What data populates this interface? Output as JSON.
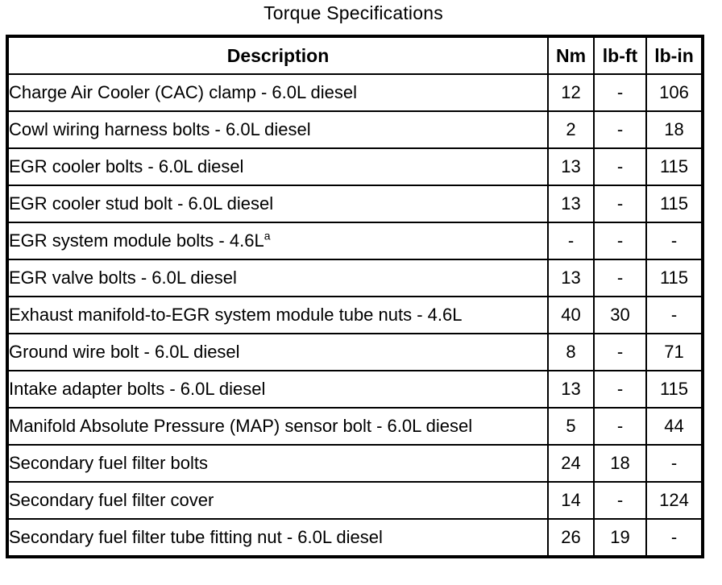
{
  "page": {
    "title": "Torque Specifications"
  },
  "colors": {
    "border": "#000000",
    "background": "#ffffff",
    "text": "#000000"
  },
  "table": {
    "columns": [
      "Description",
      "Nm",
      "lb-ft",
      "lb-in"
    ],
    "rows": [
      {
        "description": "Charge Air Cooler (CAC) clamp - 6.0L diesel",
        "nm": "12",
        "lb_ft": "-",
        "lb_in": "106"
      },
      {
        "description": "Cowl wiring harness bolts - 6.0L diesel",
        "nm": "2",
        "lb_ft": "-",
        "lb_in": "18"
      },
      {
        "description": "EGR cooler bolts - 6.0L diesel",
        "nm": "13",
        "lb_ft": "-",
        "lb_in": "115"
      },
      {
        "description": "EGR cooler stud bolt - 6.0L diesel",
        "nm": "13",
        "lb_ft": "-",
        "lb_in": "115"
      },
      {
        "description": "EGR system module bolts - 4.6L",
        "sup": "a",
        "nm": "-",
        "lb_ft": "-",
        "lb_in": "-"
      },
      {
        "description": "EGR valve bolts - 6.0L diesel",
        "nm": "13",
        "lb_ft": "-",
        "lb_in": "115"
      },
      {
        "description": "Exhaust manifold-to-EGR system module tube nuts - 4.6L",
        "nm": "40",
        "lb_ft": "30",
        "lb_in": "-"
      },
      {
        "description": "Ground wire bolt - 6.0L diesel",
        "nm": "8",
        "lb_ft": "-",
        "lb_in": "71"
      },
      {
        "description": "Intake adapter bolts - 6.0L diesel",
        "nm": "13",
        "lb_ft": "-",
        "lb_in": "115"
      },
      {
        "description": "Manifold Absolute Pressure (MAP) sensor bolt - 6.0L diesel",
        "nm": "5",
        "lb_ft": "-",
        "lb_in": "44"
      },
      {
        "description": "Secondary fuel filter bolts",
        "nm": "24",
        "lb_ft": "18",
        "lb_in": "-"
      },
      {
        "description": "Secondary fuel filter cover",
        "nm": "14",
        "lb_ft": "-",
        "lb_in": "124"
      },
      {
        "description": "Secondary fuel filter tube fitting nut - 6.0L diesel",
        "nm": "26",
        "lb_ft": "19",
        "lb_in": "-"
      }
    ]
  }
}
